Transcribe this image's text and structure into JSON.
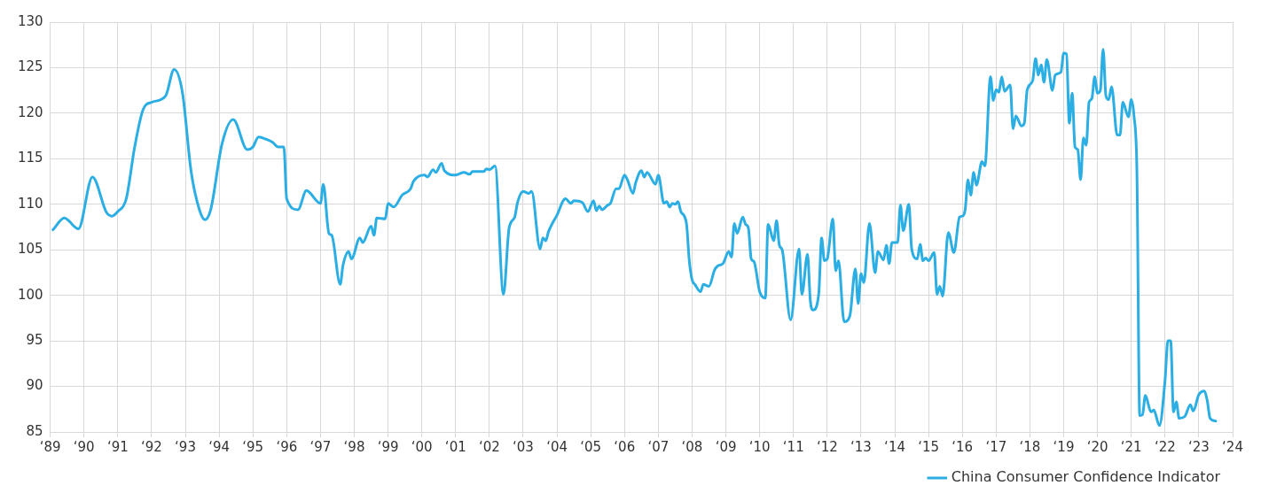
{
  "chart_data": {
    "type": "line",
    "legend": "bottom right",
    "grid": true,
    "marker": "none",
    "line_style": "solid",
    "xlim": [
      "1989",
      "2024"
    ],
    "xticks": [
      {
        "value": "1989",
        "label": "‘89"
      },
      {
        "value": "1990",
        "label": "‘90"
      },
      {
        "value": "1991",
        "label": "‘91"
      },
      {
        "value": "1992",
        "label": "‘92"
      },
      {
        "value": "1993",
        "label": "‘93"
      },
      {
        "value": "1994",
        "label": "‘94"
      },
      {
        "value": "1995",
        "label": "‘95"
      },
      {
        "value": "1996",
        "label": "‘96"
      },
      {
        "value": "1997",
        "label": "‘97"
      },
      {
        "value": "1998",
        "label": "‘98"
      },
      {
        "value": "1999",
        "label": "‘99"
      },
      {
        "value": "2000",
        "label": "‘00"
      },
      {
        "value": "2001",
        "label": "‘01"
      },
      {
        "value": "2002",
        "label": "‘02"
      },
      {
        "value": "2003",
        "label": "‘03"
      },
      {
        "value": "2004",
        "label": "‘04"
      },
      {
        "value": "2005",
        "label": "‘05"
      },
      {
        "value": "2006",
        "label": "‘06"
      },
      {
        "value": "2007",
        "label": "‘07"
      },
      {
        "value": "2008",
        "label": "‘08"
      },
      {
        "value": "2009",
        "label": "‘09"
      },
      {
        "value": "2010",
        "label": "‘10"
      },
      {
        "value": "2011",
        "label": "‘11"
      },
      {
        "value": "2012",
        "label": "‘12"
      },
      {
        "value": "2013",
        "label": "‘13"
      },
      {
        "value": "2014",
        "label": "‘14"
      },
      {
        "value": "2015",
        "label": "‘15"
      },
      {
        "value": "2016",
        "label": "‘16"
      },
      {
        "value": "2017",
        "label": "‘17"
      },
      {
        "value": "2018",
        "label": "‘18"
      },
      {
        "value": "2019",
        "label": "‘19"
      },
      {
        "value": "2020",
        "label": "‘20"
      },
      {
        "value": "2021",
        "label": "‘21"
      },
      {
        "value": "2022",
        "label": "‘22"
      },
      {
        "value": "2023",
        "label": "‘23"
      },
      {
        "value": "2024",
        "label": "‘24"
      }
    ],
    "ylim": [
      85,
      130
    ],
    "yticks": [
      85,
      90,
      95,
      100,
      105,
      110,
      115,
      120,
      125,
      130
    ],
    "series": [
      {
        "name": "China Consumer Confidence Indicator",
        "color": "#2aaee4",
        "x": [
          "1989-02",
          "1989-06",
          "1989-11",
          "1990-04",
          "1990-09",
          "1990-11",
          "1991-01",
          "1991-04",
          "1991-07",
          "1991-10",
          "1992-01",
          "1992-06",
          "1992-09",
          "1992-12",
          "1993-03",
          "1993-06",
          "1993-08",
          "1993-10",
          "1994-02",
          "1994-06",
          "1994-11",
          "1995-01",
          "1995-03",
          "1995-06",
          "1995-08",
          "1995-10",
          "1995-12",
          "1996-01",
          "1996-05",
          "1996-08",
          "1997-01",
          "1997-02",
          "1997-04",
          "1997-05",
          "1997-08",
          "1997-09",
          "1997-11",
          "1997-12",
          "1998-03",
          "1998-04",
          "1998-07",
          "1998-08",
          "1998-09",
          "1998-12",
          "1999-01",
          "1999-03",
          "1999-06",
          "1999-09",
          "1999-10",
          "2000-02",
          "2000-03",
          "2000-05",
          "2000-06",
          "2000-08",
          "2000-09",
          "2001-01",
          "2001-02",
          "2001-04",
          "2001-06",
          "2001-07",
          "2001-11",
          "2001-12",
          "2002-01",
          "2002-03",
          "2002-06",
          "2002-08",
          "2002-10",
          "2002-11",
          "2003-01",
          "2003-03",
          "2003-04",
          "2003-07",
          "2003-08",
          "2003-09",
          "2003-10",
          "2004-01",
          "2004-04",
          "2004-06",
          "2004-07",
          "2004-10",
          "2004-12",
          "2005-02",
          "2005-03",
          "2005-04",
          "2005-05",
          "2005-07",
          "2005-08",
          "2005-10",
          "2005-11",
          "2006-01",
          "2006-02",
          "2006-04",
          "2006-05",
          "2006-07",
          "2006-08",
          "2006-09",
          "2006-12",
          "2007-01",
          "2007-03",
          "2007-04",
          "2007-05",
          "2007-06",
          "2007-07",
          "2007-08",
          "2007-09",
          "2007-11",
          "2007-12",
          "2008-01",
          "2008-02",
          "2008-04",
          "2008-05",
          "2008-07",
          "2008-09",
          "2008-10",
          "2008-12",
          "2009-02",
          "2009-03",
          "2009-04",
          "2009-05",
          "2009-07",
          "2009-08",
          "2009-09",
          "2009-10",
          "2009-11",
          "2010-01",
          "2010-03",
          "2010-04",
          "2010-06",
          "2010-07",
          "2010-08",
          "2010-09",
          "2010-12",
          "2011-03",
          "2011-04",
          "2011-06",
          "2011-07",
          "2011-08",
          "2011-10",
          "2011-11",
          "2011-12",
          "2012-01",
          "2012-03",
          "2012-04",
          "2012-05",
          "2012-07",
          "2012-09",
          "2012-11",
          "2012-12",
          "2013-01",
          "2013-02",
          "2013-04",
          "2013-06",
          "2013-07",
          "2013-09",
          "2013-10",
          "2013-11",
          "2013-12",
          "2014-02",
          "2014-03",
          "2014-04",
          "2014-06",
          "2014-07",
          "2014-09",
          "2014-10",
          "2014-11",
          "2014-12",
          "2015-01",
          "2015-03",
          "2015-04",
          "2015-05",
          "2015-06",
          "2015-08",
          "2015-10",
          "2015-12",
          "2016-01",
          "2016-02",
          "2016-03",
          "2016-04",
          "2016-05",
          "2016-06",
          "2016-08",
          "2016-09",
          "2016-11",
          "2016-12",
          "2017-01",
          "2017-02",
          "2017-03",
          "2017-04",
          "2017-06",
          "2017-07",
          "2017-08",
          "2017-10",
          "2017-11",
          "2017-12",
          "2018-02",
          "2018-03",
          "2018-04",
          "2018-05",
          "2018-06",
          "2018-07",
          "2018-09",
          "2018-10",
          "2018-12",
          "2019-01",
          "2019-02",
          "2019-03",
          "2019-04",
          "2019-05",
          "2019-06",
          "2019-07",
          "2019-08",
          "2019-09",
          "2019-10",
          "2019-11",
          "2019-12",
          "2020-01",
          "2020-02",
          "2020-03",
          "2020-04",
          "2020-05",
          "2020-06",
          "2020-08",
          "2020-09",
          "2020-10",
          "2020-12",
          "2021-01",
          "2021-02",
          "2021-03",
          "2021-04",
          "2021-05",
          "2021-06",
          "2021-08",
          "2021-09",
          "2021-11",
          "2022-01",
          "2022-02",
          "2022-03",
          "2022-04",
          "2022-05",
          "2022-06",
          "2022-08",
          "2022-10",
          "2022-11",
          "2023-01",
          "2023-03",
          "2023-04",
          "2023-05",
          "2023-07"
        ],
        "values": [
          107.2,
          108.5,
          107.3,
          113.0,
          109.1,
          108.7,
          109.2,
          110.6,
          116.3,
          120.4,
          121.2,
          121.9,
          124.8,
          122.2,
          113.7,
          109.4,
          108.3,
          109.4,
          116.6,
          119.3,
          116.0,
          116.3,
          117.4,
          117.1,
          116.8,
          116.3,
          116.3,
          110.6,
          109.4,
          111.5,
          110.1,
          112.2,
          106.8,
          106.6,
          101.2,
          103.3,
          104.8,
          104.0,
          106.3,
          105.8,
          107.6,
          106.6,
          108.5,
          108.4,
          110.1,
          109.7,
          111.0,
          111.7,
          112.5,
          113.2,
          113.0,
          113.8,
          113.5,
          114.5,
          113.7,
          113.2,
          113.3,
          113.5,
          113.3,
          113.6,
          113.6,
          113.9,
          113.8,
          114.2,
          100.1,
          107.4,
          108.6,
          110.2,
          111.4,
          111.2,
          111.4,
          105.1,
          106.3,
          106.0,
          107.0,
          108.8,
          110.6,
          110.1,
          110.4,
          110.2,
          109.2,
          110.4,
          109.3,
          109.8,
          109.4,
          109.9,
          110.1,
          111.7,
          111.7,
          113.2,
          112.7,
          111.2,
          112.4,
          113.7,
          113.0,
          113.5,
          112.2,
          113.2,
          110.1,
          110.3,
          109.7,
          110.1,
          110.0,
          110.3,
          109.2,
          107.9,
          103.8,
          101.7,
          101.2,
          100.4,
          101.2,
          101.0,
          102.8,
          103.2,
          103.5,
          104.8,
          104.2,
          107.9,
          106.8,
          108.6,
          107.8,
          107.4,
          104.0,
          103.7,
          100.4,
          99.7,
          107.8,
          106.0,
          108.2,
          105.5,
          105.0,
          97.3,
          105.1,
          100.1,
          104.5,
          99.4,
          98.4,
          100.2,
          106.3,
          103.8,
          104.0,
          108.4,
          102.7,
          103.8,
          97.1,
          97.7,
          102.9,
          99.1,
          102.4,
          101.4,
          107.9,
          102.5,
          104.8,
          103.9,
          105.5,
          103.5,
          105.8,
          105.8,
          109.9,
          107.1,
          110.0,
          105.1,
          104.0,
          105.6,
          103.8,
          104.1,
          103.8,
          104.7,
          100.1,
          101.0,
          99.9,
          106.9,
          104.7,
          108.6,
          108.7,
          109.4,
          112.7,
          111.0,
          113.5,
          112.1,
          114.7,
          114.2,
          124.0,
          121.4,
          122.6,
          122.3,
          124.0,
          122.4,
          123.1,
          118.3,
          119.7,
          118.6,
          118.9,
          122.5,
          123.6,
          126.0,
          124.2,
          125.3,
          123.4,
          125.9,
          122.5,
          124.2,
          124.5,
          126.6,
          126.5,
          118.9,
          122.2,
          116.3,
          116.0,
          112.7,
          117.3,
          116.5,
          121.2,
          121.6,
          124.0,
          122.2,
          122.5,
          127.0,
          121.9,
          121.5,
          122.9,
          117.6,
          117.6,
          121.2,
          119.6,
          121.5,
          119.6,
          113.7,
          86.8,
          86.9,
          89.0,
          87.2,
          87.4,
          85.7,
          90.7,
          95.0,
          95.0,
          87.2,
          88.3,
          86.5,
          86.7,
          88.0,
          87.3,
          89.1,
          89.5,
          88.4,
          86.5,
          86.2
        ]
      }
    ]
  }
}
